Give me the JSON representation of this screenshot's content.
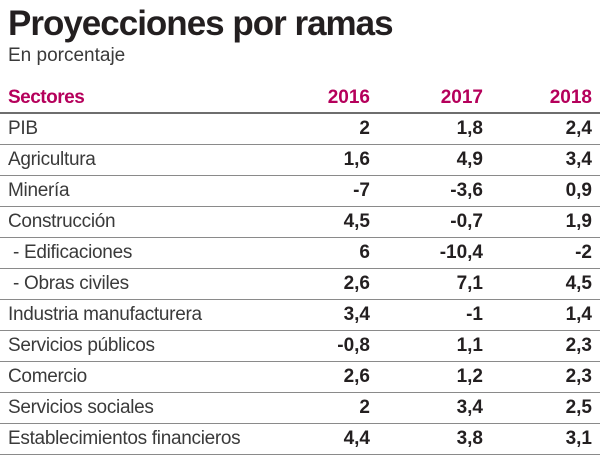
{
  "title": "Proyecciones por ramas",
  "subtitle": "En porcentaje",
  "colors": {
    "header": "#b5005b",
    "text": "#231f20"
  },
  "table": {
    "columns": [
      "Sectores",
      "2016",
      "2017",
      "2018"
    ],
    "rows": [
      {
        "label": "PIB",
        "values": [
          "2",
          "1,8",
          "2,4"
        ]
      },
      {
        "label": "Agricultura",
        "values": [
          "1,6",
          "4,9",
          "3,4"
        ]
      },
      {
        "label": "Minería",
        "values": [
          "-7",
          "-3,6",
          "0,9"
        ]
      },
      {
        "label": "Construcción",
        "values": [
          "4,5",
          "-0,7",
          "1,9"
        ]
      },
      {
        "label": " - Edificaciones",
        "values": [
          "6",
          "-10,4",
          "-2"
        ]
      },
      {
        "label": " - Obras civiles",
        "values": [
          "2,6",
          "7,1",
          "4,5"
        ]
      },
      {
        "label": "Industria manufacturera",
        "values": [
          "3,4",
          "-1",
          "1,4"
        ]
      },
      {
        "label": "Servicios públicos",
        "values": [
          "-0,8",
          "1,1",
          "2,3"
        ]
      },
      {
        "label": "Comercio",
        "values": [
          "2,6",
          "1,2",
          "2,3"
        ]
      },
      {
        "label": "Servicios sociales",
        "values": [
          "2",
          "3,4",
          "2,5"
        ]
      },
      {
        "label": "Establecimientos financieros",
        "values": [
          "4,4",
          "3,8",
          "3,1"
        ]
      }
    ]
  },
  "chart_data": {
    "type": "table",
    "title": "Proyecciones por ramas",
    "subtitle": "En porcentaje",
    "columns": [
      "Sectores",
      "2016",
      "2017",
      "2018"
    ],
    "categories": [
      "PIB",
      "Agricultura",
      "Minería",
      "Construcción",
      "- Edificaciones",
      "- Obras civiles",
      "Industria manufacturera",
      "Servicios públicos",
      "Comercio",
      "Servicios sociales",
      "Establecimientos financieros"
    ],
    "series": [
      {
        "name": "2016",
        "values": [
          2,
          1.6,
          -7,
          4.5,
          6,
          2.6,
          3.4,
          -0.8,
          2.6,
          2,
          4.4
        ]
      },
      {
        "name": "2017",
        "values": [
          1.8,
          4.9,
          -3.6,
          -0.7,
          -10.4,
          7.1,
          -1,
          1.1,
          1.2,
          3.4,
          3.8
        ]
      },
      {
        "name": "2018",
        "values": [
          2.4,
          3.4,
          0.9,
          1.9,
          -2,
          4.5,
          1.4,
          2.3,
          2.3,
          2.5,
          3.1
        ]
      }
    ]
  }
}
